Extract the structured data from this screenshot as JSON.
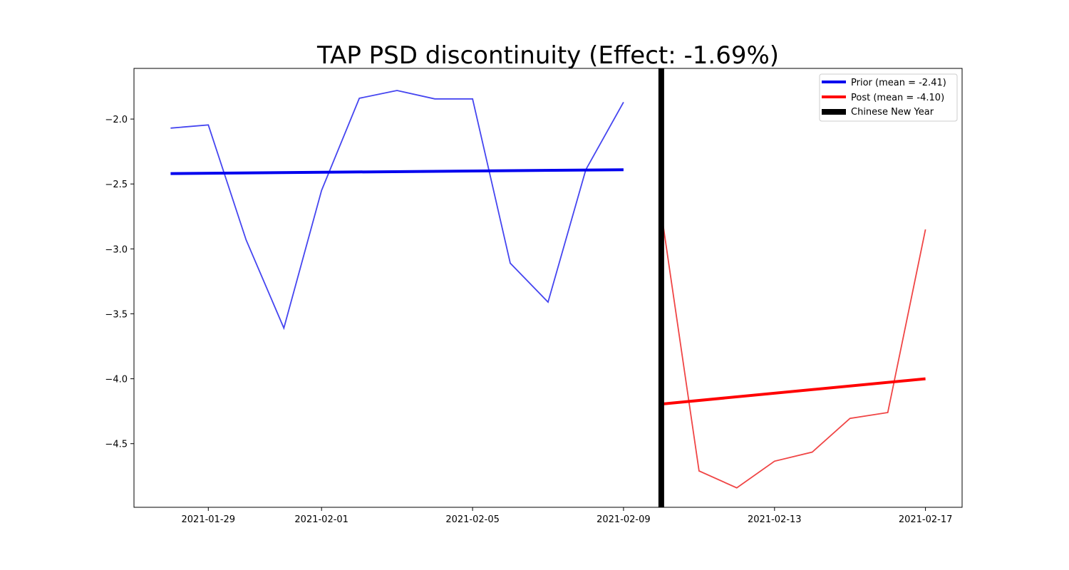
{
  "chart_data": {
    "type": "line",
    "title": "TAP PSD discontinuity (Effect: -1.69%)",
    "xlabel": "",
    "ylabel": "",
    "xlim": [
      "2021-01-27",
      "2021-02-18"
    ],
    "ylim": [
      -4.99,
      -1.61
    ],
    "x_ticks": [
      "2021-01-29",
      "2021-02-01",
      "2021-02-05",
      "2021-02-09",
      "2021-02-13",
      "2021-02-17"
    ],
    "y_ticks": [
      -2.0,
      -2.5,
      -3.0,
      -3.5,
      -4.0,
      -4.5
    ],
    "y_tick_labels": [
      "−2.0",
      "−2.5",
      "−3.0",
      "−3.5",
      "−4.0",
      "−4.5"
    ],
    "grid": false,
    "legend_position": "upper right",
    "series": [
      {
        "name": "Prior",
        "color": "#4545f0",
        "points": [
          [
            "2021-01-28",
            -2.07
          ],
          [
            "2021-01-29",
            -2.045
          ],
          [
            "2021-01-30",
            -2.93
          ],
          [
            "2021-01-31",
            -3.61
          ],
          [
            "2021-02-01",
            -2.55
          ],
          [
            "2021-02-02",
            -1.84
          ],
          [
            "2021-02-03",
            -1.78
          ],
          [
            "2021-02-04",
            -1.845
          ],
          [
            "2021-02-05",
            -1.845
          ],
          [
            "2021-02-06",
            -3.11
          ],
          [
            "2021-02-07",
            -3.41
          ],
          [
            "2021-02-08",
            -2.39
          ],
          [
            "2021-02-09",
            -1.87
          ]
        ]
      },
      {
        "name": "Post",
        "color": "#f04545",
        "points": [
          [
            "2021-02-10",
            -2.72
          ],
          [
            "2021-02-11",
            -4.71
          ],
          [
            "2021-02-12",
            -4.84
          ],
          [
            "2021-02-13",
            -4.635
          ],
          [
            "2021-02-14",
            -4.565
          ],
          [
            "2021-02-15",
            -4.305
          ],
          [
            "2021-02-16",
            -4.26
          ],
          [
            "2021-02-17",
            -2.85
          ]
        ]
      }
    ],
    "trend_lines": [
      {
        "name": "Prior (mean = -2.41)",
        "color": "#0000ee",
        "points": [
          [
            "2021-01-28",
            -2.42
          ],
          [
            "2021-02-09",
            -2.39
          ]
        ]
      },
      {
        "name": "Post (mean = -4.10)",
        "color": "#ff0000",
        "points": [
          [
            "2021-02-10",
            -4.195
          ],
          [
            "2021-02-17",
            -4.0
          ]
        ]
      }
    ],
    "event_marker": {
      "name": "Chinese New Year",
      "date": "2021-02-10",
      "color": "#000000"
    },
    "legend": [
      {
        "label": "Prior (mean = -2.41)",
        "color": "#0000ee",
        "style": "line"
      },
      {
        "label": "Post (mean = -4.10)",
        "color": "#ff0000",
        "style": "line"
      },
      {
        "label": "Chinese New Year",
        "color": "#000000",
        "style": "thick"
      }
    ]
  }
}
